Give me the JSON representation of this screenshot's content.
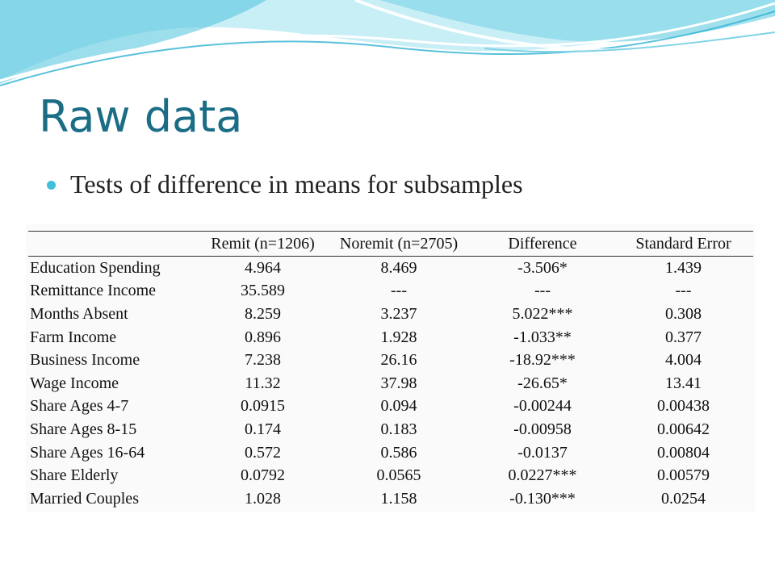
{
  "slide": {
    "title": "Raw data",
    "bullet": "Tests of difference in means for subsamples"
  },
  "colors": {
    "title": "#1b6d86",
    "bullet": "#3fbfdc",
    "wave_light": "#c8eef6",
    "wave_mid": "#8fdaea",
    "wave_dark": "#4cc3dd"
  },
  "table": {
    "headers": [
      "",
      "Remit (n=1206)",
      "Noremit (n=2705)",
      "Difference",
      "Standard Error"
    ],
    "rows": [
      [
        "Education Spending",
        "4.964",
        "8.469",
        "-3.506*",
        "1.439"
      ],
      [
        "Remittance Income",
        "35.589",
        "---",
        "---",
        "---"
      ],
      [
        "Months Absent",
        "8.259",
        "3.237",
        "5.022***",
        "0.308"
      ],
      [
        "Farm Income",
        "0.896",
        "1.928",
        "-1.033**",
        "0.377"
      ],
      [
        "Business Income",
        "7.238",
        "26.16",
        "-18.92***",
        "4.004"
      ],
      [
        "Wage Income",
        "11.32",
        "37.98",
        "-26.65*",
        "13.41"
      ],
      [
        "Share Ages 4-7",
        "0.0915",
        "0.094",
        "-0.00244",
        "0.00438"
      ],
      [
        "Share Ages 8-15",
        "0.174",
        "0.183",
        "-0.00958",
        "0.00642"
      ],
      [
        "Share Ages 16-64",
        "0.572",
        "0.586",
        "-0.0137",
        "0.00804"
      ],
      [
        "Share Elderly",
        "0.0792",
        "0.0565",
        "0.0227***",
        "0.00579"
      ],
      [
        "Married Couples",
        "1.028",
        "1.158",
        "-0.130***",
        "0.0254"
      ]
    ]
  }
}
